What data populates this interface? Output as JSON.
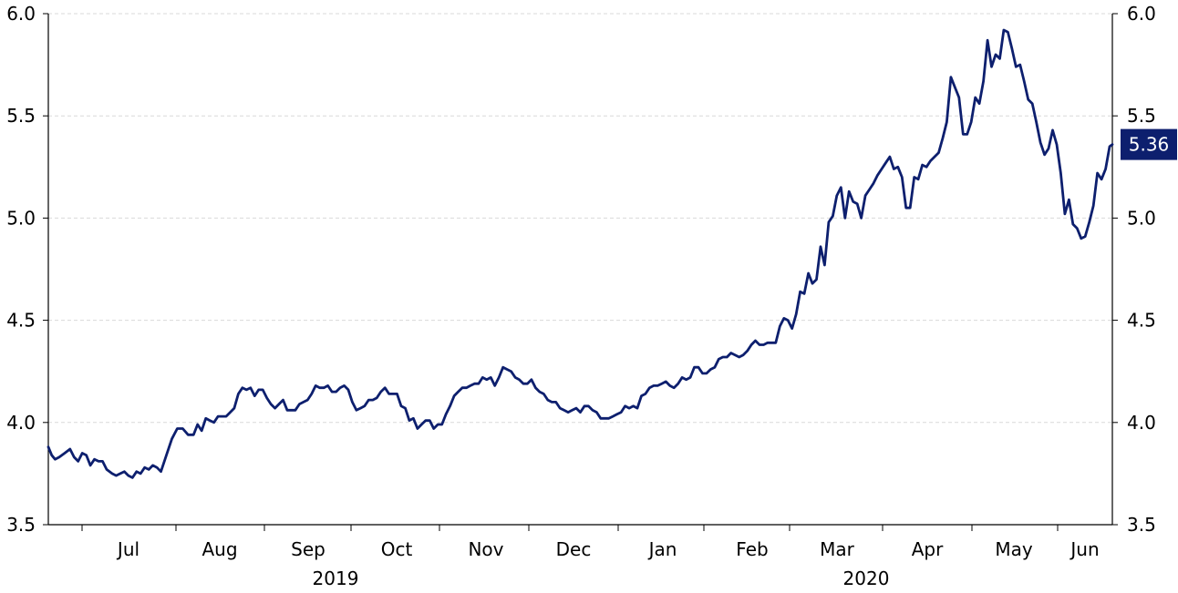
{
  "chart_data": {
    "type": "line",
    "title": "",
    "xlabel": "",
    "ylabel": "",
    "ylim": [
      3.5,
      6.0
    ],
    "y_ticks": [
      3.5,
      4.0,
      4.5,
      5.0,
      5.5,
      6.0
    ],
    "y_tick_labels": [
      "3.5",
      "4.0",
      "4.5",
      "5.0",
      "5.5",
      "6.0"
    ],
    "y_axes": [
      "left",
      "right"
    ],
    "grid": "horizontal dashed",
    "x_tick_labels": [
      "Jul",
      "Aug",
      "Sep",
      "Oct",
      "Nov",
      "Dec",
      "Jan",
      "Feb",
      "Mar",
      "Apr",
      "May",
      "Jun"
    ],
    "year_labels": [
      "2019",
      "2020"
    ],
    "line_color": "#0d1f6e",
    "last_value_label": "5.36",
    "last_value_badge_color": "#0d1f6e",
    "series": [
      {
        "points": [
          [
            0.0,
            3.88
          ],
          [
            2.5,
            3.84
          ],
          [
            5,
            3.82
          ],
          [
            8,
            3.83
          ],
          [
            12,
            3.85
          ],
          [
            16,
            3.87
          ],
          [
            19,
            3.83
          ],
          [
            22,
            3.81
          ],
          [
            25,
            3.85
          ],
          [
            28,
            3.84
          ],
          [
            31,
            3.79
          ],
          [
            34,
            3.82
          ],
          [
            37,
            3.81
          ],
          [
            40,
            3.81
          ],
          [
            43,
            3.77
          ],
          [
            47,
            3.75
          ],
          [
            50,
            3.74
          ],
          [
            53,
            3.75
          ],
          [
            56,
            3.76
          ],
          [
            59,
            3.74
          ],
          [
            62,
            3.73
          ],
          [
            65,
            3.76
          ],
          [
            68,
            3.75
          ],
          [
            71,
            3.78
          ],
          [
            74,
            3.77
          ],
          [
            77,
            3.79
          ],
          [
            80,
            3.78
          ],
          [
            83,
            3.76
          ],
          [
            87,
            3.84
          ],
          [
            91,
            3.92
          ],
          [
            95,
            3.97
          ],
          [
            99,
            3.97
          ],
          [
            103,
            3.94
          ],
          [
            107,
            3.94
          ],
          [
            110,
            3.99
          ],
          [
            113,
            3.96
          ],
          [
            116,
            4.02
          ],
          [
            119,
            4.01
          ],
          [
            122,
            4.0
          ],
          [
            125,
            4.03
          ],
          [
            128,
            4.03
          ],
          [
            131,
            4.03
          ],
          [
            134,
            4.05
          ],
          [
            137,
            4.07
          ],
          [
            140,
            4.14
          ],
          [
            143,
            4.17
          ],
          [
            146,
            4.16
          ],
          [
            149,
            4.17
          ],
          [
            152,
            4.13
          ],
          [
            155,
            4.16
          ],
          [
            158,
            4.16
          ],
          [
            161,
            4.12
          ],
          [
            164,
            4.09
          ],
          [
            167,
            4.07
          ],
          [
            170,
            4.09
          ],
          [
            173,
            4.11
          ],
          [
            176,
            4.06
          ],
          [
            179,
            4.06
          ],
          [
            182,
            4.06
          ],
          [
            185,
            4.09
          ],
          [
            188,
            4.1
          ],
          [
            191,
            4.11
          ],
          [
            194,
            4.14
          ],
          [
            197,
            4.18
          ],
          [
            200,
            4.17
          ],
          [
            203,
            4.17
          ],
          [
            206,
            4.18
          ],
          [
            209,
            4.15
          ],
          [
            212,
            4.15
          ],
          [
            215,
            4.17
          ],
          [
            218,
            4.18
          ],
          [
            221,
            4.16
          ],
          [
            224,
            4.1
          ],
          [
            227,
            4.06
          ],
          [
            230,
            4.07
          ],
          [
            233,
            4.08
          ],
          [
            236,
            4.11
          ],
          [
            239,
            4.11
          ],
          [
            242,
            4.12
          ],
          [
            245,
            4.15
          ],
          [
            248,
            4.17
          ],
          [
            251,
            4.14
          ],
          [
            254,
            4.14
          ],
          [
            257,
            4.14
          ],
          [
            260,
            4.08
          ],
          [
            263,
            4.07
          ],
          [
            266,
            4.01
          ],
          [
            269,
            4.02
          ],
          [
            272,
            3.97
          ],
          [
            275,
            3.99
          ],
          [
            278,
            4.01
          ],
          [
            281,
            4.01
          ],
          [
            284,
            3.97
          ],
          [
            287,
            3.99
          ],
          [
            290,
            3.99
          ],
          [
            293,
            4.04
          ],
          [
            296,
            4.08
          ],
          [
            299,
            4.13
          ],
          [
            302,
            4.15
          ],
          [
            305,
            4.17
          ],
          [
            308,
            4.17
          ],
          [
            311,
            4.18
          ],
          [
            314,
            4.19
          ],
          [
            317,
            4.19
          ],
          [
            320,
            4.22
          ],
          [
            323,
            4.21
          ],
          [
            326,
            4.22
          ],
          [
            329,
            4.18
          ],
          [
            332,
            4.22
          ],
          [
            335,
            4.27
          ],
          [
            338,
            4.26
          ],
          [
            341,
            4.25
          ],
          [
            344,
            4.22
          ],
          [
            347,
            4.21
          ],
          [
            350,
            4.19
          ],
          [
            353,
            4.19
          ],
          [
            356,
            4.21
          ],
          [
            359,
            4.17
          ],
          [
            362,
            4.15
          ],
          [
            365,
            4.14
          ],
          [
            368,
            4.11
          ],
          [
            371,
            4.1
          ],
          [
            374,
            4.1
          ],
          [
            377,
            4.07
          ],
          [
            380,
            4.06
          ],
          [
            383,
            4.05
          ],
          [
            386,
            4.06
          ],
          [
            389,
            4.07
          ],
          [
            392,
            4.05
          ],
          [
            395,
            4.08
          ],
          [
            398,
            4.08
          ],
          [
            401,
            4.06
          ],
          [
            404,
            4.05
          ],
          [
            407,
            4.02
          ],
          [
            410,
            4.02
          ],
          [
            413,
            4.02
          ],
          [
            416,
            4.03
          ],
          [
            419,
            4.04
          ],
          [
            422,
            4.05
          ],
          [
            425,
            4.08
          ],
          [
            428,
            4.07
          ],
          [
            431,
            4.08
          ],
          [
            434,
            4.07
          ],
          [
            437,
            4.13
          ],
          [
            440,
            4.14
          ],
          [
            443,
            4.17
          ],
          [
            446,
            4.18
          ],
          [
            449,
            4.18
          ],
          [
            452,
            4.19
          ],
          [
            455,
            4.2
          ],
          [
            458,
            4.18
          ],
          [
            461,
            4.17
          ],
          [
            464,
            4.19
          ],
          [
            467,
            4.22
          ],
          [
            470,
            4.21
          ],
          [
            473,
            4.22
          ],
          [
            476,
            4.27
          ],
          [
            479,
            4.27
          ],
          [
            482,
            4.24
          ],
          [
            485,
            4.24
          ],
          [
            488,
            4.26
          ],
          [
            491,
            4.27
          ],
          [
            494,
            4.31
          ],
          [
            497,
            4.32
          ],
          [
            500,
            4.32
          ],
          [
            503,
            4.34
          ],
          [
            506,
            4.33
          ],
          [
            509,
            4.32
          ],
          [
            512,
            4.33
          ],
          [
            515,
            4.35
          ],
          [
            518,
            4.38
          ],
          [
            521,
            4.4
          ],
          [
            524,
            4.38
          ],
          [
            527,
            4.38
          ],
          [
            530,
            4.39
          ],
          [
            533,
            4.39
          ],
          [
            536,
            4.39
          ],
          [
            539,
            4.47
          ],
          [
            542,
            4.51
          ],
          [
            545,
            4.5
          ],
          [
            548,
            4.46
          ],
          [
            551,
            4.53
          ],
          [
            554,
            4.64
          ],
          [
            557,
            4.63
          ],
          [
            560,
            4.73
          ],
          [
            563,
            4.68
          ],
          [
            566,
            4.7
          ],
          [
            569,
            4.86
          ],
          [
            572,
            4.77
          ],
          [
            575,
            4.98
          ],
          [
            578,
            5.01
          ],
          [
            581,
            5.11
          ],
          [
            584,
            5.15
          ],
          [
            587,
            5.0
          ],
          [
            590,
            5.13
          ],
          [
            593,
            5.08
          ],
          [
            596,
            5.07
          ],
          [
            599,
            5.0
          ],
          [
            602,
            5.11
          ],
          [
            605,
            5.14
          ],
          [
            608,
            5.17
          ],
          [
            611,
            5.21
          ],
          [
            614,
            5.24
          ],
          [
            617,
            5.27
          ],
          [
            620,
            5.3
          ],
          [
            623,
            5.24
          ],
          [
            626,
            5.25
          ],
          [
            629,
            5.2
          ],
          [
            632,
            5.05
          ],
          [
            635,
            5.05
          ],
          [
            638,
            5.2
          ],
          [
            641,
            5.19
          ],
          [
            644,
            5.26
          ],
          [
            647,
            5.25
          ],
          [
            650,
            5.28
          ],
          [
            653,
            5.3
          ],
          [
            656,
            5.32
          ],
          [
            659,
            5.39
          ],
          [
            662,
            5.47
          ],
          [
            665,
            5.69
          ],
          [
            668,
            5.64
          ],
          [
            671,
            5.59
          ],
          [
            674,
            5.41
          ],
          [
            677,
            5.41
          ],
          [
            680,
            5.47
          ],
          [
            683,
            5.59
          ],
          [
            686,
            5.56
          ],
          [
            689,
            5.67
          ],
          [
            692,
            5.87
          ],
          [
            695,
            5.74
          ],
          [
            698,
            5.8
          ],
          [
            701,
            5.78
          ],
          [
            704,
            5.92
          ],
          [
            707,
            5.91
          ],
          [
            710,
            5.83
          ],
          [
            713,
            5.74
          ],
          [
            716,
            5.75
          ],
          [
            719,
            5.67
          ],
          [
            722,
            5.58
          ],
          [
            725,
            5.56
          ],
          [
            728,
            5.47
          ],
          [
            731,
            5.37
          ],
          [
            734,
            5.31
          ],
          [
            737,
            5.34
          ],
          [
            740,
            5.43
          ],
          [
            743,
            5.36
          ],
          [
            746,
            5.22
          ],
          [
            749,
            5.02
          ],
          [
            752,
            5.09
          ],
          [
            755,
            4.97
          ],
          [
            758,
            4.95
          ],
          [
            761,
            4.9
          ],
          [
            764,
            4.91
          ],
          [
            767,
            4.98
          ],
          [
            770,
            5.06
          ],
          [
            773,
            5.22
          ],
          [
            776,
            5.19
          ],
          [
            779,
            5.24
          ],
          [
            782,
            5.35
          ],
          [
            784,
            5.36
          ]
        ]
      }
    ]
  }
}
